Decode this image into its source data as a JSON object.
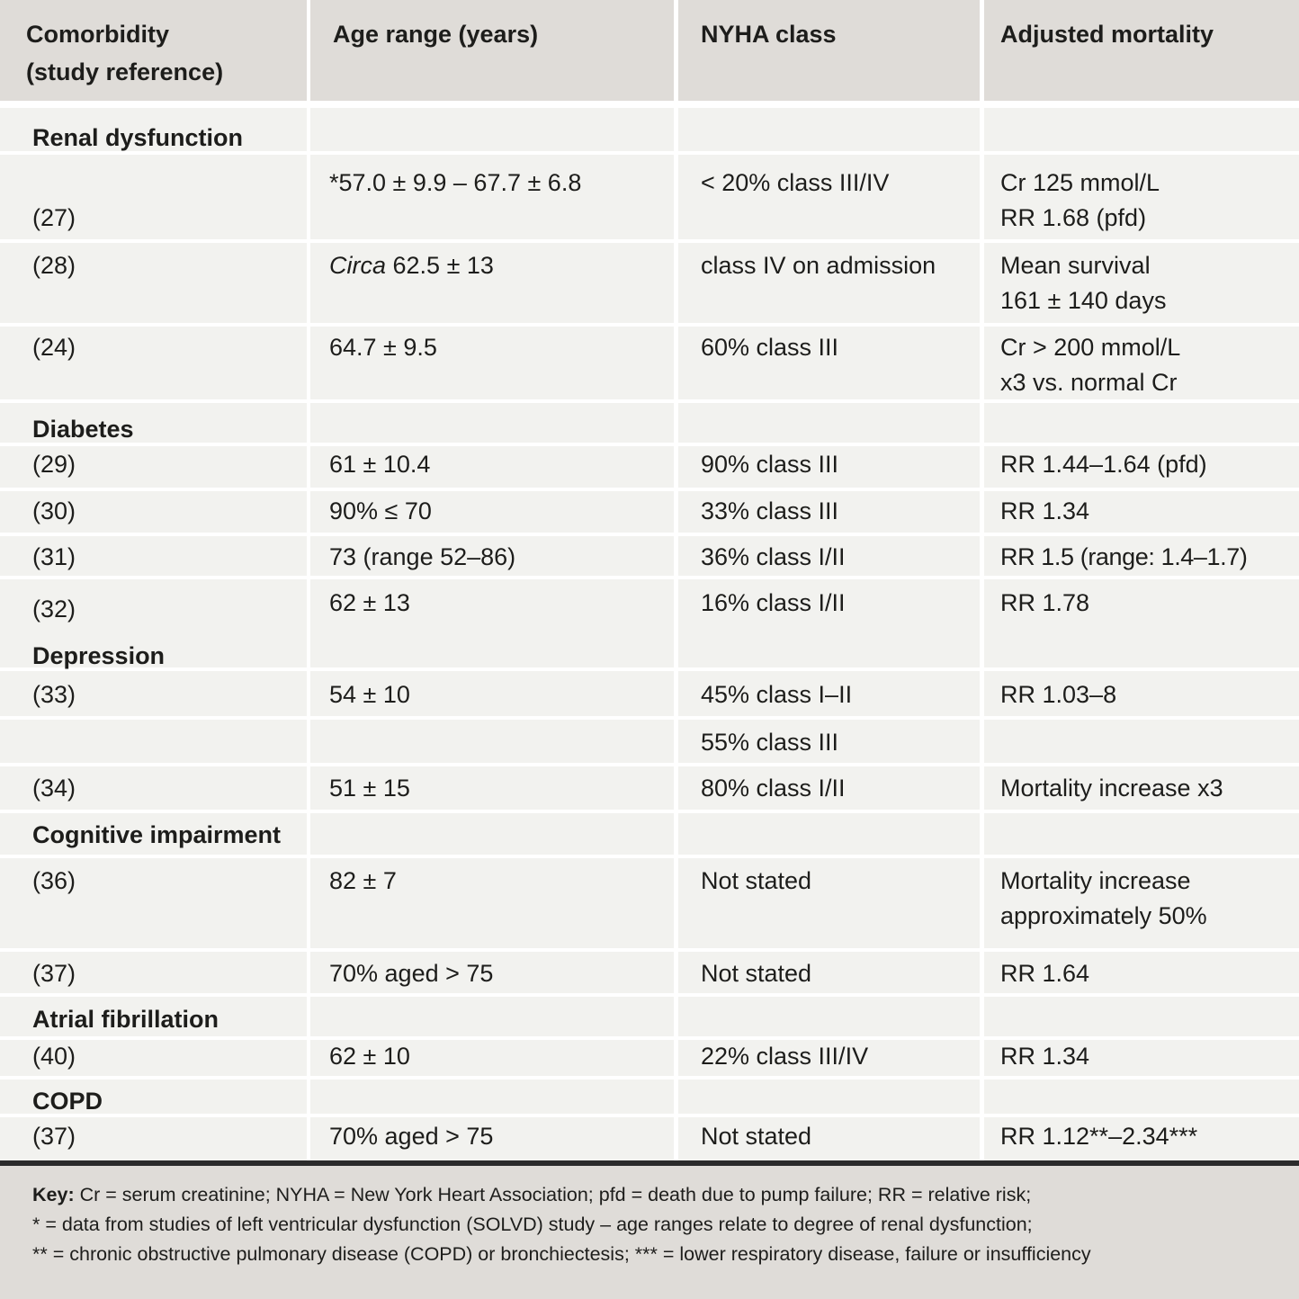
{
  "headers": [
    "Comorbidity\n(study reference)",
    "Age range (years)",
    "NYHA class",
    "Adjusted mortality"
  ],
  "rows": [
    {
      "c1": "Renal dysfunction",
      "section": true
    },
    {
      "c1": "(27)",
      "c2": "*57.0 ± 9.9 – 67.7 ± 6.8",
      "c3": "< 20% class III/IV",
      "c4": "Cr 125 mmol/L\nRR 1.68 (pfd)"
    },
    {
      "c1": "(28)",
      "c2_italic": "Circa",
      "c2": " 62.5 ± 13",
      "c3": "class IV on admission",
      "c4": "Mean survival\n161 ± 140 days"
    },
    {
      "c1": "(24)",
      "c2": "64.7 ± 9.5",
      "c3": "60% class III",
      "c4": "Cr > 200 mmol/L\nx3 vs. normal Cr"
    },
    {
      "c1": "Diabetes",
      "section": true
    },
    {
      "c1": "(29)",
      "c2": "61 ± 10.4",
      "c3": "90% class III",
      "c4": "RR 1.44–1.64 (pfd)"
    },
    {
      "c1": "(30)",
      "c2": "90% ≤ 70",
      "c3": "33% class III",
      "c4": "RR 1.34"
    },
    {
      "c1": "(31)",
      "c2": "73 (range 52–86)",
      "c3": "36% class I/II",
      "c4": "RR 1.5 (range: 1.4–1.7)"
    },
    {
      "c1": "(32)",
      "c1_section": "Depression",
      "c2": "62 ± 13",
      "c3": "16% class I/II",
      "c4": "RR 1.78"
    },
    {
      "c1": "(33)",
      "c2": "54 ± 10",
      "c3": "45% class I–II",
      "c4": "RR 1.03–8"
    },
    {
      "c1": "",
      "c2": "",
      "c3": "55% class III",
      "c4": ""
    },
    {
      "c1": "(34)",
      "c2": "51 ± 15",
      "c3": "80% class I/II",
      "c4": "Mortality increase x3"
    },
    {
      "c1": "Cognitive impairment",
      "section": true
    },
    {
      "c1": "(36)",
      "c2": "82 ± 7",
      "c3": "Not stated",
      "c4": "Mortality increase\napproximately 50%"
    },
    {
      "c1": "(37)",
      "c2": "70% aged > 75",
      "c3": "Not stated",
      "c4": "RR 1.64"
    },
    {
      "c1": "Atrial fibrillation",
      "section": true
    },
    {
      "c1": "(40)",
      "c2": "62 ± 10",
      "c3": "22% class III/IV",
      "c4": "RR 1.34"
    },
    {
      "c1": "COPD",
      "section": true
    },
    {
      "c1": "(37)",
      "c2": "70% aged > 75",
      "c3": "Not stated",
      "c4": "RR 1.12**–2.34***"
    }
  ],
  "key": {
    "label": "Key:",
    "line1": " Cr = serum creatinine; NYHA = New York Heart Association; pfd = death due to pump failure; RR = relative risk;",
    "line2": "* = data from studies of left ventricular dysfunction (SOLVD) study – age ranges relate to degree of renal dysfunction;",
    "line3": "** = chronic obstructive pulmonary disease (COPD) or bronchiectesis; *** = lower respiratory disease, failure or insufficiency"
  }
}
